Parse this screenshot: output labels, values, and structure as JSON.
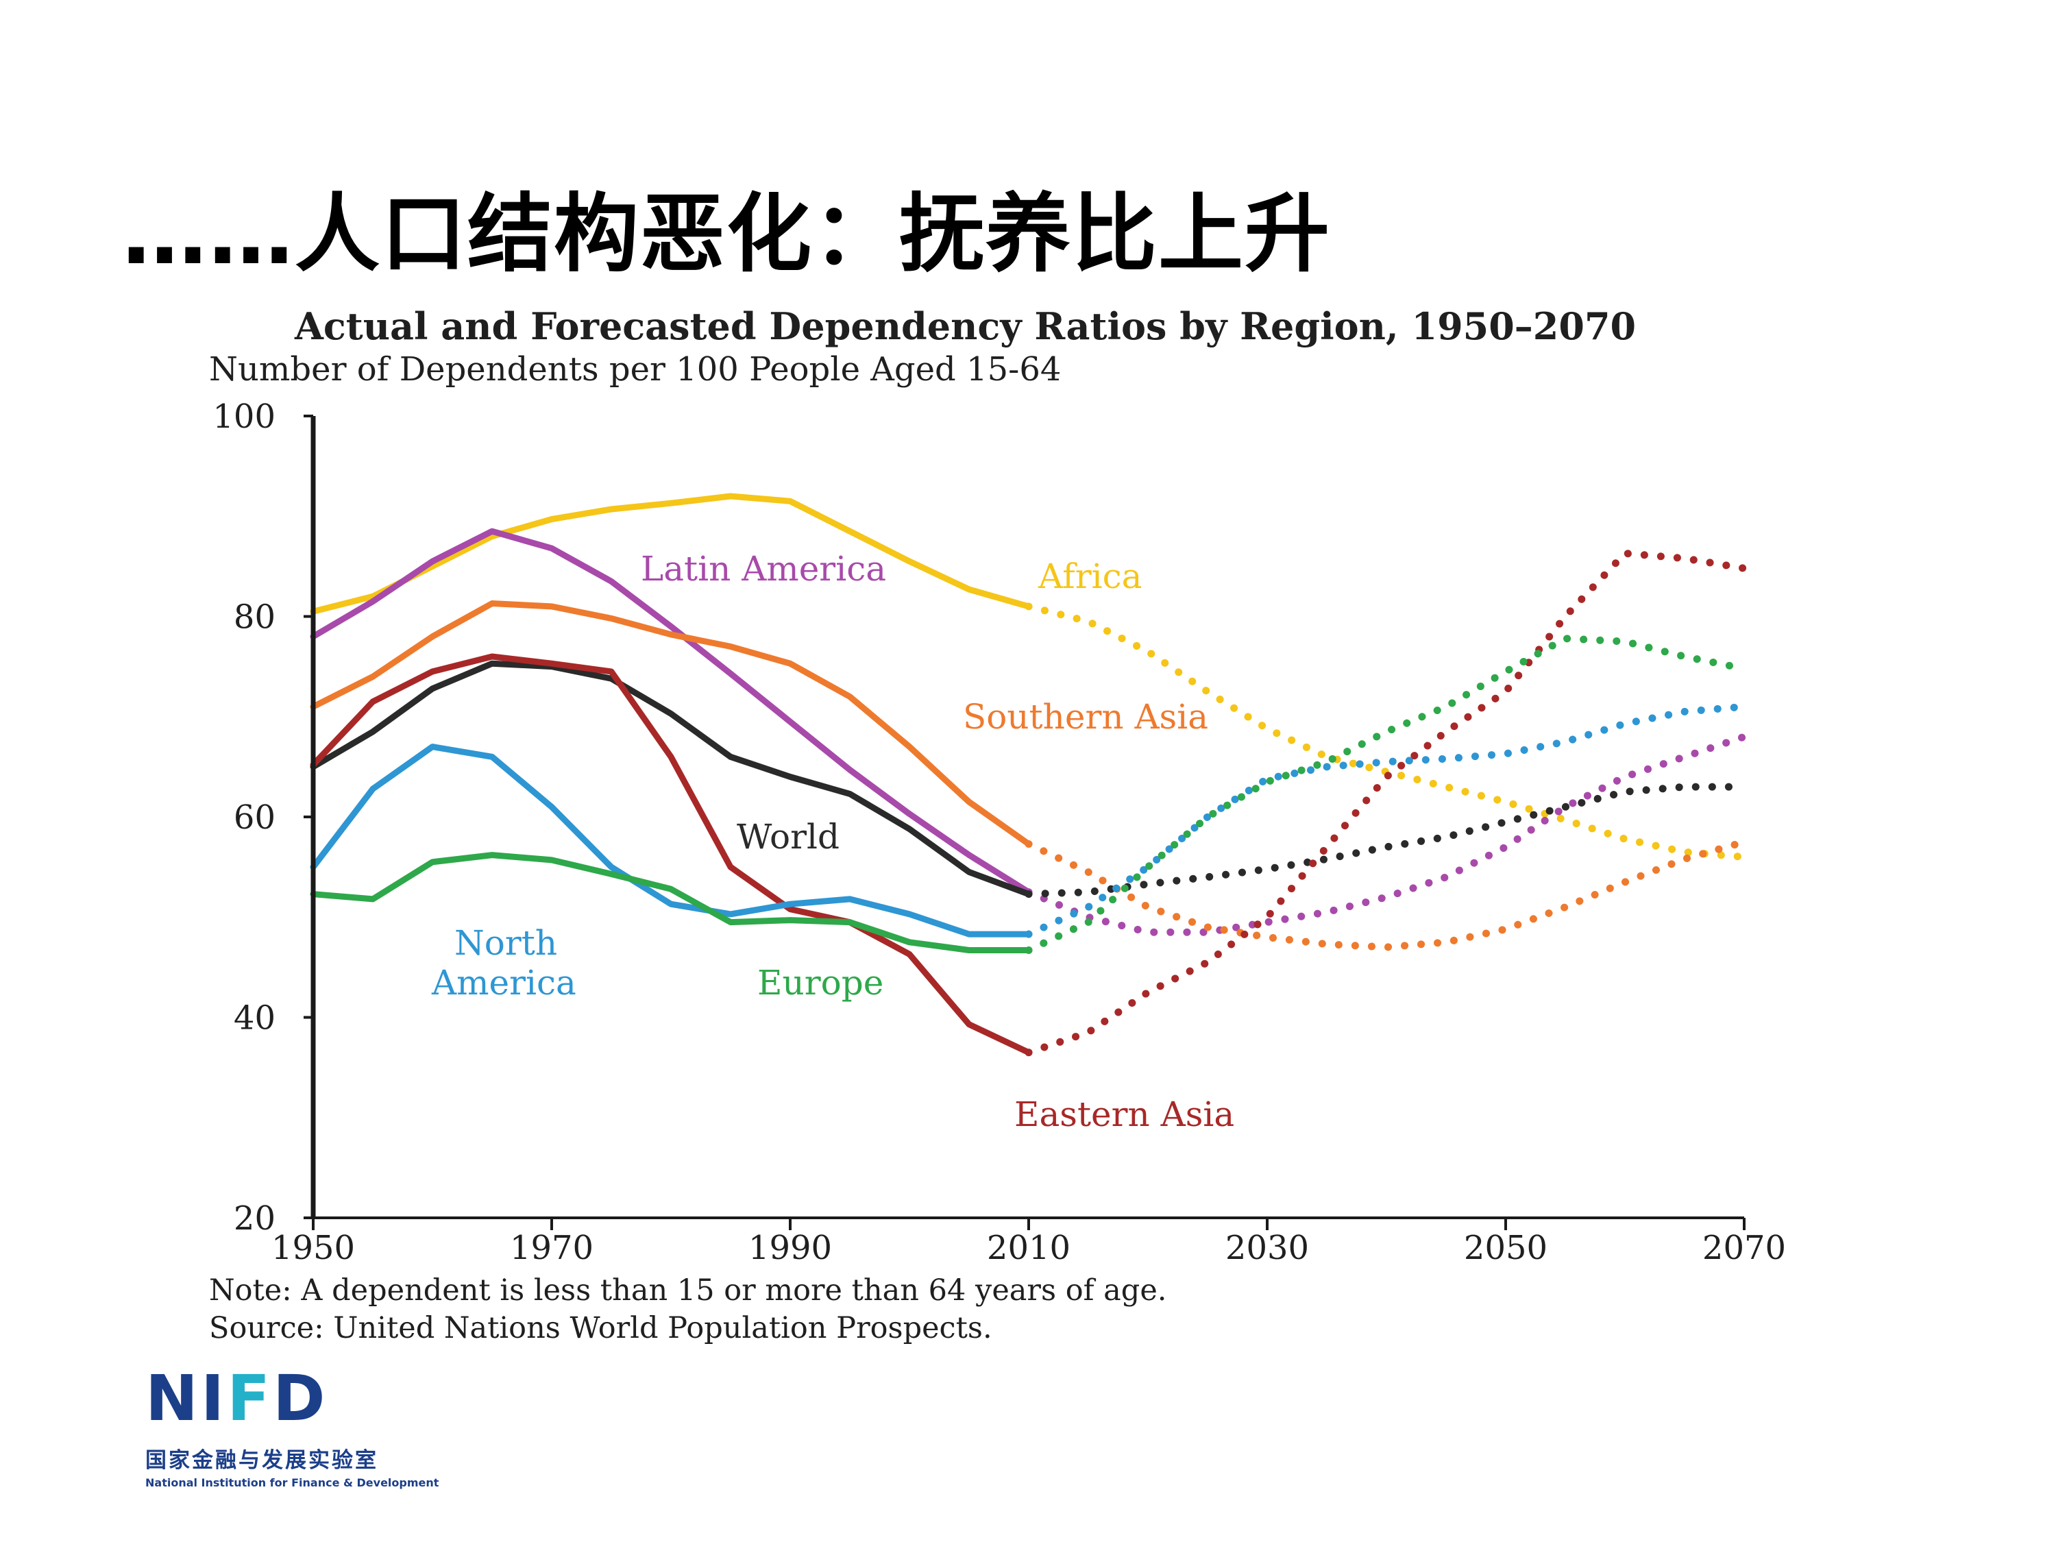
{
  "slide": {
    "title": "……人口结构恶化：抚养比上升"
  },
  "chart_data": {
    "type": "line",
    "title": "Actual and Forecasted Dependency Ratios by Region, 1950–2070",
    "subtitle": "Number of Dependents per 100 People Aged 15-64",
    "xlabel": "",
    "ylabel": "",
    "xlim": [
      1950,
      2070
    ],
    "ylim": [
      20,
      100
    ],
    "x_ticks": [
      1950,
      1970,
      1990,
      2010,
      2030,
      2050,
      2070
    ],
    "y_ticks": [
      20,
      40,
      60,
      80,
      100
    ],
    "grid": false,
    "actual_until": 2010,
    "forecast_style": "dotted",
    "series": [
      {
        "name": "Africa",
        "label": "Africa",
        "color": "#f5c518",
        "actual": [
          [
            1950,
            80.5
          ],
          [
            1955,
            82
          ],
          [
            1960,
            85
          ],
          [
            1965,
            88
          ],
          [
            1970,
            89.7
          ],
          [
            1975,
            90.7
          ],
          [
            1980,
            91.3
          ],
          [
            1985,
            92
          ],
          [
            1990,
            91.5
          ],
          [
            1995,
            88.5
          ],
          [
            2000,
            85.5
          ],
          [
            2005,
            82.7
          ],
          [
            2010,
            81
          ]
        ],
        "forecast": [
          [
            2010,
            81
          ],
          [
            2015,
            79.5
          ],
          [
            2020,
            76.5
          ],
          [
            2025,
            72.5
          ],
          [
            2030,
            68.8
          ],
          [
            2035,
            66
          ],
          [
            2040,
            64.5
          ],
          [
            2045,
            63
          ],
          [
            2050,
            61.5
          ],
          [
            2055,
            59.7
          ],
          [
            2060,
            57.8
          ],
          [
            2065,
            56.5
          ],
          [
            2070,
            56
          ]
        ]
      },
      {
        "name": "Latin America",
        "label": "Latin America",
        "color": "#a84aaa",
        "actual": [
          [
            1950,
            78
          ],
          [
            1955,
            81.5
          ],
          [
            1960,
            85.5
          ],
          [
            1965,
            88.5
          ],
          [
            1970,
            86.8
          ],
          [
            1975,
            83.5
          ],
          [
            1980,
            79
          ],
          [
            1985,
            74.3
          ],
          [
            1990,
            69.5
          ],
          [
            1995,
            64.7
          ],
          [
            2000,
            60.3
          ],
          [
            2005,
            56.2
          ],
          [
            2010,
            52.5
          ]
        ],
        "forecast": [
          [
            2010,
            52.5
          ],
          [
            2015,
            50
          ],
          [
            2020,
            48.5
          ],
          [
            2025,
            48.5
          ],
          [
            2030,
            49.5
          ],
          [
            2035,
            50.5
          ],
          [
            2040,
            52
          ],
          [
            2045,
            54
          ],
          [
            2050,
            57
          ],
          [
            2055,
            61
          ],
          [
            2060,
            64
          ],
          [
            2065,
            66
          ],
          [
            2070,
            68
          ]
        ]
      },
      {
        "name": "Southern Asia",
        "label": "Southern Asia",
        "color": "#ee7a2e",
        "actual": [
          [
            1950,
            71
          ],
          [
            1955,
            74
          ],
          [
            1960,
            78
          ],
          [
            1965,
            81.3
          ],
          [
            1970,
            81
          ],
          [
            1975,
            79.8
          ],
          [
            1980,
            78.2
          ],
          [
            1985,
            77
          ],
          [
            1990,
            75.3
          ],
          [
            1995,
            72
          ],
          [
            2000,
            67
          ],
          [
            2005,
            61.5
          ],
          [
            2010,
            57.3
          ]
        ],
        "forecast": [
          [
            2010,
            57.3
          ],
          [
            2015,
            54.5
          ],
          [
            2020,
            51
          ],
          [
            2025,
            49
          ],
          [
            2030,
            48
          ],
          [
            2035,
            47.3
          ],
          [
            2040,
            47
          ],
          [
            2045,
            47.5
          ],
          [
            2050,
            48.8
          ],
          [
            2055,
            51
          ],
          [
            2060,
            53.5
          ],
          [
            2065,
            55.8
          ],
          [
            2070,
            57.5
          ]
        ]
      },
      {
        "name": "World",
        "label": "World",
        "color": "#2a2a2a",
        "actual": [
          [
            1950,
            65
          ],
          [
            1955,
            68.5
          ],
          [
            1960,
            72.8
          ],
          [
            1965,
            75.3
          ],
          [
            1970,
            75
          ],
          [
            1975,
            73.8
          ],
          [
            1980,
            70.3
          ],
          [
            1985,
            66
          ],
          [
            1990,
            64
          ],
          [
            1995,
            62.3
          ],
          [
            2000,
            58.8
          ],
          [
            2005,
            54.5
          ],
          [
            2010,
            52.3
          ]
        ],
        "forecast": [
          [
            2010,
            52.3
          ],
          [
            2015,
            52.5
          ],
          [
            2020,
            53.3
          ],
          [
            2025,
            54
          ],
          [
            2030,
            54.8
          ],
          [
            2035,
            55.8
          ],
          [
            2040,
            57
          ],
          [
            2045,
            58
          ],
          [
            2050,
            59.5
          ],
          [
            2055,
            61
          ],
          [
            2060,
            62.5
          ],
          [
            2065,
            63
          ],
          [
            2070,
            63
          ]
        ]
      },
      {
        "name": "Eastern Asia",
        "label": "Eastern Asia",
        "color": "#a82828",
        "actual": [
          [
            1950,
            65.2
          ],
          [
            1955,
            71.5
          ],
          [
            1960,
            74.5
          ],
          [
            1965,
            76
          ],
          [
            1970,
            75.3
          ],
          [
            1975,
            74.5
          ],
          [
            1980,
            66
          ],
          [
            1985,
            55
          ],
          [
            1990,
            50.8
          ],
          [
            1995,
            49.5
          ],
          [
            2000,
            46.3
          ],
          [
            2005,
            39.3
          ],
          [
            2010,
            36.5
          ]
        ],
        "forecast": [
          [
            2010,
            36.5
          ],
          [
            2015,
            38.5
          ],
          [
            2020,
            42.5
          ],
          [
            2025,
            45.5
          ],
          [
            2030,
            50
          ],
          [
            2035,
            57
          ],
          [
            2040,
            64
          ],
          [
            2045,
            68.5
          ],
          [
            2050,
            72.5
          ],
          [
            2055,
            80
          ],
          [
            2060,
            86.3
          ],
          [
            2065,
            85.8
          ],
          [
            2070,
            84.8
          ]
        ]
      },
      {
        "name": "North America",
        "label": "North\nAmerica",
        "label_lines": [
          "North",
          "America"
        ],
        "color": "#2e96d3",
        "actual": [
          [
            1950,
            55
          ],
          [
            1955,
            62.8
          ],
          [
            1960,
            67
          ],
          [
            1965,
            66
          ],
          [
            1970,
            61
          ],
          [
            1975,
            55
          ],
          [
            1980,
            51.3
          ],
          [
            1985,
            50.3
          ],
          [
            1990,
            51.3
          ],
          [
            1995,
            51.8
          ],
          [
            2000,
            50.3
          ],
          [
            2005,
            48.3
          ],
          [
            2010,
            48.3
          ]
        ],
        "forecast": [
          [
            2010,
            48.3
          ],
          [
            2015,
            51
          ],
          [
            2020,
            55
          ],
          [
            2025,
            60
          ],
          [
            2030,
            63.8
          ],
          [
            2035,
            65
          ],
          [
            2040,
            65.5
          ],
          [
            2045,
            65.8
          ],
          [
            2050,
            66.3
          ],
          [
            2055,
            67.5
          ],
          [
            2060,
            69.3
          ],
          [
            2065,
            70.5
          ],
          [
            2070,
            71
          ]
        ]
      },
      {
        "name": "Europe",
        "label": "Europe",
        "color": "#2ea84a",
        "actual": [
          [
            1950,
            52.3
          ],
          [
            1955,
            51.8
          ],
          [
            1960,
            55.5
          ],
          [
            1965,
            56.2
          ],
          [
            1970,
            55.7
          ],
          [
            1975,
            54.3
          ],
          [
            1980,
            52.8
          ],
          [
            1985,
            49.5
          ],
          [
            1990,
            49.7
          ],
          [
            1995,
            49.5
          ],
          [
            2000,
            47.5
          ],
          [
            2005,
            46.7
          ],
          [
            2010,
            46.7
          ]
        ],
        "forecast": [
          [
            2010,
            46.7
          ],
          [
            2015,
            49.5
          ],
          [
            2020,
            55
          ],
          [
            2025,
            60
          ],
          [
            2030,
            63.5
          ],
          [
            2035,
            65.5
          ],
          [
            2040,
            68.5
          ],
          [
            2045,
            71
          ],
          [
            2050,
            74.5
          ],
          [
            2055,
            77.8
          ],
          [
            2060,
            77.5
          ],
          [
            2065,
            76
          ],
          [
            2070,
            74.8
          ]
        ]
      }
    ],
    "notes": [
      "Note: A dependent is less than 15 or more than 64 years of age.",
      "Source: United Nations World Population Prospects."
    ]
  },
  "logo": {
    "mark_part1": "NI",
    "mark_accent": "F",
    "mark_part2": "D",
    "chinese_name": "国家金融与发展实验室",
    "english_name": "National Institution for Finance & Development"
  }
}
